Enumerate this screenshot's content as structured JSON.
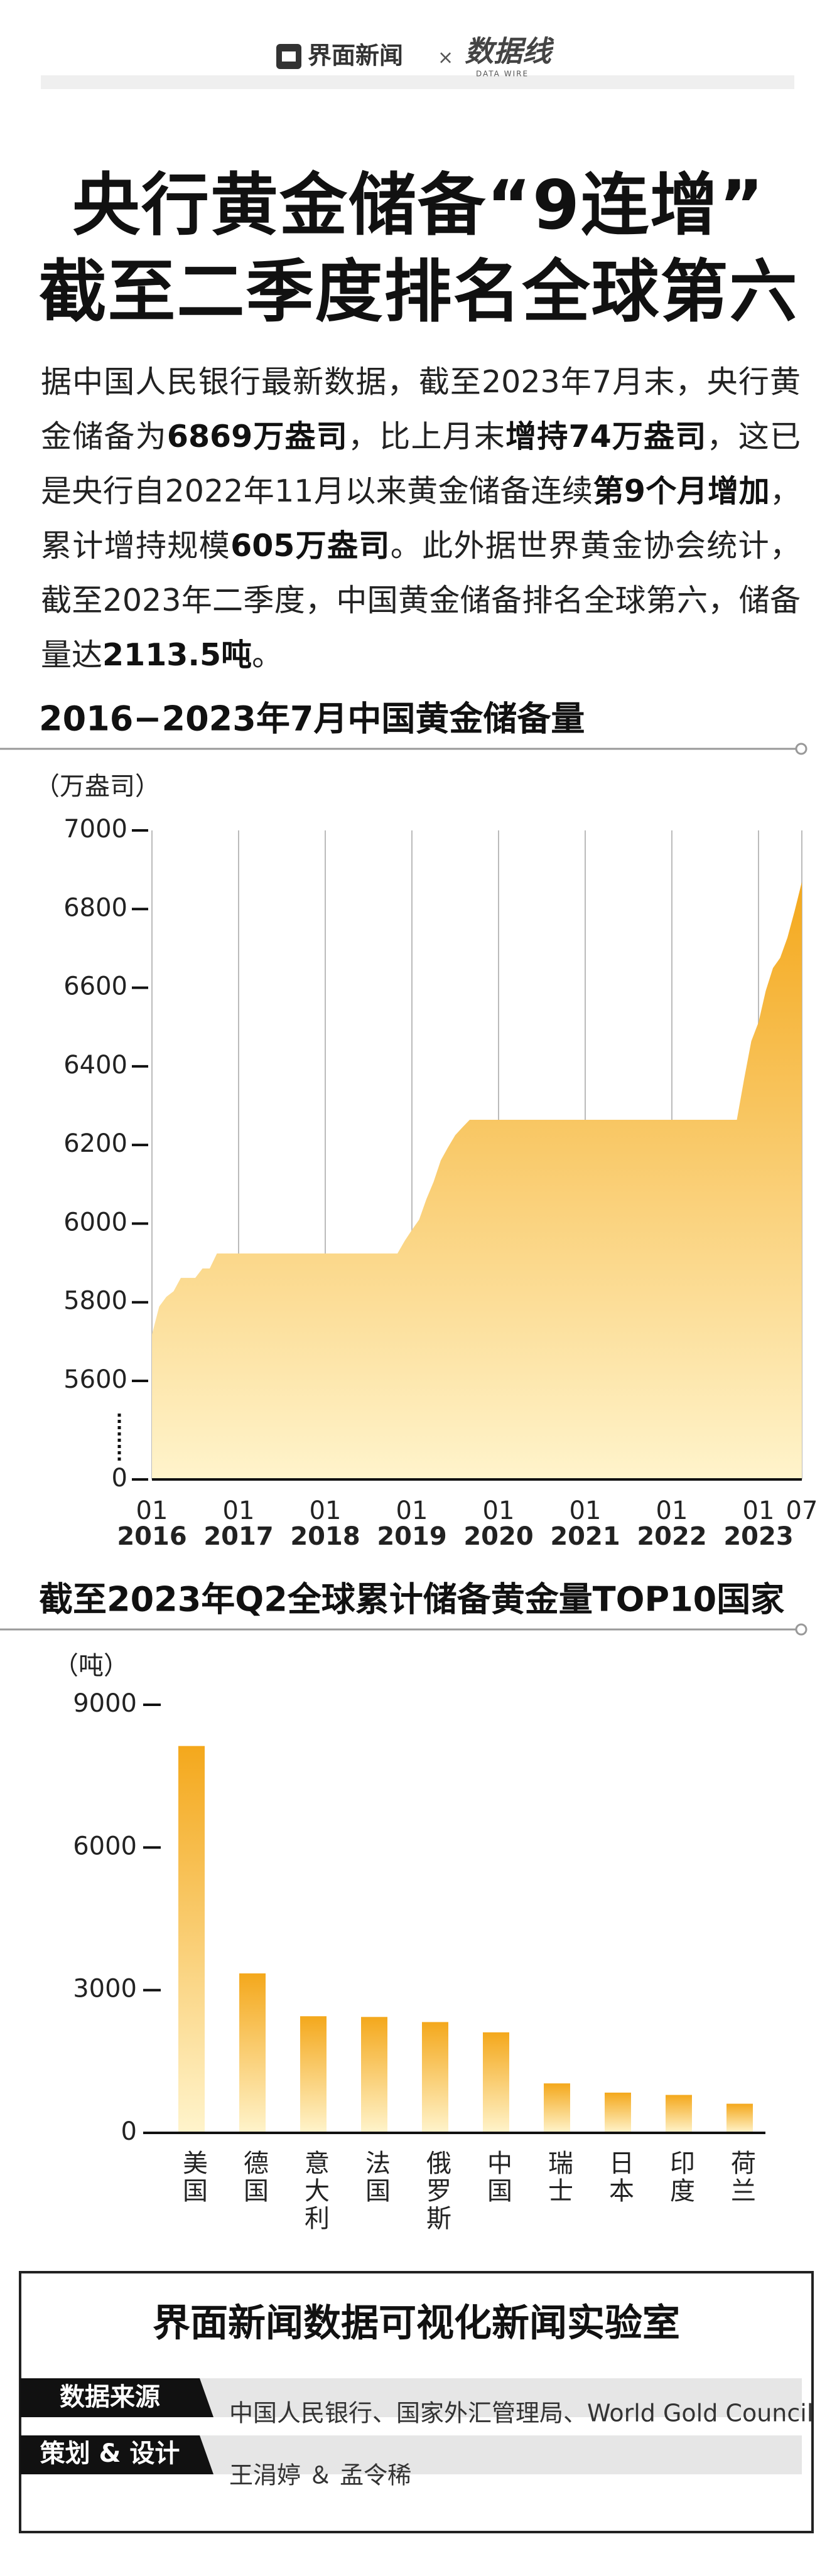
{
  "header": {
    "brand": "界面新闻",
    "times": "×",
    "partner": "数据线",
    "partner_sub": "DATA WIRE"
  },
  "title_lines": [
    "央行黄金储备“9连增”",
    "截至二季度排名全球第六"
  ],
  "intro": [
    {
      "text": "据中国人民银行最新数据，截至2023年7月末，央行黄金储备为",
      "bold": false
    },
    {
      "text": "6869万盎司",
      "bold": true
    },
    {
      "text": "，比上月末",
      "bold": false
    },
    {
      "text": "增持74万盎司",
      "bold": true
    },
    {
      "text": "，这已是央行自2022年11月以来黄金储备连续",
      "bold": false
    },
    {
      "text": "第9个月增加",
      "bold": true
    },
    {
      "text": "，累计增持规模",
      "bold": false
    },
    {
      "text": "605万盎司",
      "bold": true
    },
    {
      "text": "。此外据世界黄金协会统计，截至2023年二季度，中国黄金储备排名全球第六，储备量达",
      "bold": false
    },
    {
      "text": "2113.5吨",
      "bold": true
    },
    {
      "text": "。",
      "bold": false
    }
  ],
  "chart_data": [
    {
      "type": "area",
      "title": "2016−2023年7月中国黄金储备量",
      "y_label": "（万盎司）",
      "x": [
        "2016-01",
        "2016-02",
        "2016-03",
        "2016-04",
        "2016-05",
        "2016-06",
        "2016-07",
        "2016-08",
        "2016-09",
        "2016-10",
        "2018-11",
        "2018-12",
        "2019-01",
        "2019-02",
        "2019-03",
        "2019-04",
        "2019-05",
        "2019-06",
        "2019-07",
        "2019-08",
        "2019-09",
        "2022-10",
        "2022-11",
        "2022-12",
        "2023-01",
        "2023-02",
        "2023-03",
        "2023-04",
        "2023-05",
        "2023-06",
        "2023-07"
      ],
      "series": [
        {
          "name": "黄金储备",
          "color": "#f4a81c",
          "values": [
            5718,
            5789,
            5814,
            5828,
            5862,
            5862,
            5862,
            5886,
            5886,
            5924,
            5924,
            5956,
            5984,
            6010,
            6062,
            6106,
            6161,
            6194,
            6225,
            6245,
            6264,
            6264,
            6367,
            6464,
            6512,
            6592,
            6650,
            6676,
            6727,
            6795,
            6869
          ]
        }
      ],
      "gradient_end": "#fff4cc",
      "xlim": [
        "2016-01",
        "2023-07"
      ],
      "xticks": [
        {
          "value": "2016-01",
          "label": "01"
        },
        {
          "value": "2017-01",
          "label": "01"
        },
        {
          "value": "2018-01",
          "label": "01"
        },
        {
          "value": "2019-01",
          "label": "01"
        },
        {
          "value": "2020-01",
          "label": "01"
        },
        {
          "value": "2021-01",
          "label": "01"
        },
        {
          "value": "2022-01",
          "label": "01"
        },
        {
          "value": "2023-01",
          "label": "01"
        },
        {
          "value": "2023-07",
          "label": "07"
        }
      ],
      "year_labels": [
        {
          "value": "2016-01",
          "label": "2016"
        },
        {
          "value": "2017-01",
          "label": "2017"
        },
        {
          "value": "2018-01",
          "label": "2018"
        },
        {
          "value": "2019-01",
          "label": "2019"
        },
        {
          "value": "2020-01",
          "label": "2020"
        },
        {
          "value": "2021-01",
          "label": "2021"
        },
        {
          "value": "2022-01",
          "label": "2022"
        },
        {
          "value": "2023-01",
          "label": "2023"
        }
      ],
      "ylim": [
        0,
        7000
      ],
      "y_break": [
        0,
        5600
      ],
      "yticks": [
        0,
        5600,
        5800,
        6000,
        6200,
        6400,
        6600,
        6800,
        7000
      ],
      "grid": true
    },
    {
      "type": "bar",
      "title": "截至2023年Q2全球累计储备黄金量TOP10国家",
      "y_label": "（吨）",
      "categories": [
        "美国",
        "德国",
        "意大利",
        "法国",
        "俄罗斯",
        "中国",
        "瑞士",
        "日本",
        "印度",
        "荷兰"
      ],
      "values": [
        8133.5,
        3352.6,
        2451.8,
        2436.9,
        2329.6,
        2113.5,
        1040.0,
        846.0,
        797.4,
        612.5
      ],
      "color": "#f4a81c",
      "gradient_end": "#fff4cc",
      "ylim": [
        0,
        9000
      ],
      "yticks": [
        0,
        3000,
        6000,
        9000
      ]
    }
  ],
  "footer": {
    "title": "界面新闻数据可视化新闻实验室",
    "rows": [
      {
        "label": "数据来源",
        "text": "中国人民银行、国家外汇管理局、World Gold Council"
      },
      {
        "label": "策划 & 设计",
        "text": "王涓婷 ＆ 孟令稀"
      }
    ]
  }
}
